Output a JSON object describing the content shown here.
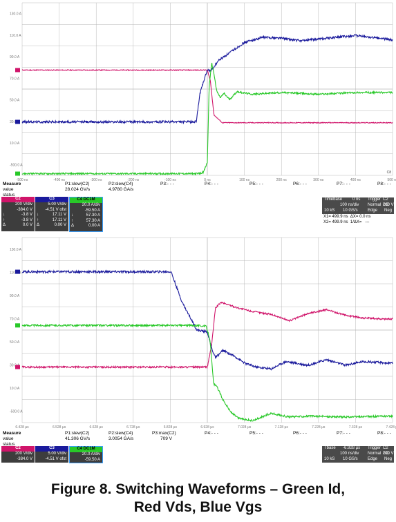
{
  "colors": {
    "grid": "#b8b8b8",
    "vds": "#d0146a",
    "vgs": "#1a1a9c",
    "id": "#28c828",
    "panel": "#3d3d3d"
  },
  "chart_data": [
    {
      "type": "line",
      "xunit": "ns",
      "yunit": "A",
      "xlim": [
        -500,
        500
      ],
      "ylim": [
        -50,
        150
      ],
      "y_tick_labels": [
        "130.0 A",
        "110.0 A",
        "90.0 A",
        "70.0 A",
        "50.0 A",
        "30.0 A",
        "10.0 A",
        "-500.0 A"
      ],
      "x_tick_labels": [
        "-500 ns",
        "-400 ns",
        "-300 ns",
        "-200 ns",
        "-100 ns",
        "0 ns",
        "100 ns",
        "200 ns",
        "300 ns",
        "400 ns",
        "500 ns"
      ],
      "corner_label": "C8",
      "series": [
        {
          "x": [
            -500,
            -50,
            -20,
            0,
            8,
            18,
            40,
            100,
            200,
            300,
            400,
            500
          ],
          "y": [
            72,
            72,
            72,
            72,
            60,
            20,
            11,
            11,
            11,
            11,
            11,
            11
          ],
          "noise": 0.5
        },
        {
          "x": [
            -500,
            -50,
            -30,
            -20,
            0,
            10,
            30,
            60,
            100,
            150,
            200,
            250,
            300,
            350,
            400,
            500
          ],
          "y": [
            12,
            12,
            12,
            45,
            72,
            71,
            83,
            92,
            104,
            110,
            109,
            106,
            108,
            110,
            112,
            107
          ],
          "noise": 1.3
        },
        {
          "x": [
            -500,
            -20,
            -10,
            0,
            5,
            12,
            18,
            25,
            35,
            45,
            60,
            80,
            120,
            200,
            300,
            400,
            500
          ],
          "y": [
            -48,
            -48,
            -46,
            -35,
            55,
            80,
            68,
            48,
            40,
            45,
            38,
            47,
            44,
            46,
            44,
            46,
            46
          ],
          "noise": 1.0
        }
      ]
    },
    {
      "type": "line",
      "xunit": "µs",
      "yunit": "A",
      "xlim": [
        6.428,
        7.428
      ],
      "ylim": [
        -50,
        150
      ],
      "y_tick_labels": [
        "130.0 A",
        "110.0 A",
        "90.0 A",
        "70.0 A",
        "50.0 A",
        "30.0 A",
        "10.0 A",
        "-500.0 A",
        "-500.0 A"
      ],
      "x_tick_labels": [
        "6.428 µs",
        "6.528 µs",
        "6.628 µs",
        "6.728 µs",
        "6.828 µs",
        "6.928 µs",
        "7.028 µs",
        "7.128 µs",
        "7.228 µs",
        "7.328 µs",
        "7.428 µs"
      ],
      "series": [
        {
          "x": [
            6.428,
            6.9,
            6.928,
            6.94,
            6.95,
            6.965,
            6.98,
            7.01,
            7.05,
            7.1,
            7.15,
            7.2,
            7.25,
            7.3,
            7.35,
            7.4,
            7.428
          ],
          "y": [
            10,
            10,
            10,
            35,
            74,
            80,
            78,
            74,
            70,
            67,
            60,
            68,
            72,
            66,
            63,
            62,
            62
          ],
          "noise": 0.9
        },
        {
          "x": [
            6.428,
            6.83,
            6.86,
            6.9,
            6.928,
            6.94,
            6.95,
            6.97,
            7.0,
            7.03,
            7.06,
            7.1,
            7.14,
            7.2,
            7.25,
            7.3,
            7.35,
            7.428
          ],
          "y": [
            113,
            113,
            80,
            50,
            48,
            30,
            20,
            28,
            22,
            14,
            10,
            8,
            16,
            12,
            18,
            12,
            16,
            14
          ],
          "noise": 1.2
        },
        {
          "x": [
            6.428,
            6.9,
            6.925,
            6.935,
            6.945,
            6.955,
            6.97,
            6.99,
            7.01,
            7.05,
            7.1,
            7.15,
            7.2,
            7.3,
            7.428
          ],
          "y": [
            55,
            55,
            54,
            40,
            -8,
            -12,
            -25,
            -38,
            -45,
            -48,
            -40,
            -44,
            -43,
            -44,
            -43
          ],
          "noise": 1.0
        }
      ]
    }
  ],
  "scope1": {
    "measure": {
      "headers": [
        "Measure",
        "value",
        "status"
      ],
      "params": [
        {
          "label": "P1:slew(C2)",
          "value": "28.024 GV/s"
        },
        {
          "label": "P2:slew(C4)",
          "value": "4.9780 GA/s"
        },
        {
          "label": "P3:- - -",
          "value": ""
        },
        {
          "label": "P4:- - -",
          "value": ""
        },
        {
          "label": "P5:- - -",
          "value": ""
        },
        {
          "label": "P6:- - -",
          "value": ""
        },
        {
          "label": "P7:- - -",
          "value": ""
        },
        {
          "label": "P8:- - -",
          "value": ""
        }
      ]
    },
    "channels": [
      {
        "name": "C2",
        "scale": "200 V/div",
        "offset": "-384.0 V",
        "rows": [
          [
            "↓",
            "-3.8 V"
          ],
          [
            "↑",
            "-3.8 V"
          ],
          [
            "Δ",
            "0.0 V"
          ]
        ]
      },
      {
        "name": "C3",
        "scale": "5.00 V/div",
        "offset": "-4.51 V ofst",
        "rows": [
          [
            "↓",
            "17.11 V"
          ],
          [
            "↑",
            "17.11 V"
          ],
          [
            "Δ",
            "0.00 V"
          ]
        ]
      },
      {
        "name": "C4 DC1M",
        "scale": "20.0 A/div",
        "offset": "-59.50 A",
        "rows": [
          [
            "↓",
            "57.30 A"
          ],
          [
            "↑",
            "57.30 A"
          ],
          [
            "Δ",
            "0.00 A"
          ]
        ]
      }
    ],
    "timebase": {
      "r1": [
        "Timebase",
        "0 ns",
        "Trigger",
        "C2 DC"
      ],
      "r2": [
        "100 ns/div",
        "Normal",
        "200 V"
      ],
      "r3": [
        "10 kS",
        "10 GS/s",
        "Edge",
        "Neg"
      ]
    },
    "cursor": {
      "x1": "X1=",
      "x1v": "499.9 ns",
      "dx": "ΔX=",
      "dxv": "0.0 ns",
      "x2": "X2=",
      "x2v": "499.9 ns",
      "idx": "1/ΔX=",
      "idxv": "---"
    }
  },
  "scope2": {
    "measure": {
      "headers": [
        "Measure",
        "value",
        "status"
      ],
      "params": [
        {
          "label": "P1:slew(C2)",
          "value": "41.306 GV/s"
        },
        {
          "label": "P2:slew(C4)",
          "value": "3.0054 GA/s"
        },
        {
          "label": "P3:max(C2)",
          "value": "709 V"
        },
        {
          "label": "P4:- - -",
          "value": ""
        },
        {
          "label": "P5:- - -",
          "value": ""
        },
        {
          "label": "P6:- - -",
          "value": ""
        },
        {
          "label": "P7:- - -",
          "value": ""
        },
        {
          "label": "P8:- - -",
          "value": ""
        }
      ]
    },
    "channels": [
      {
        "name": "C2",
        "scale": "200 V/div",
        "offset": "-384.0 V"
      },
      {
        "name": "C3",
        "scale": "5.00 V/div",
        "offset": "-4.51 V ofst"
      },
      {
        "name": "C4 DC1M",
        "scale": "20.0 A/div",
        "offset": "-59.50 A"
      }
    ],
    "timebase": {
      "r1": [
        "Tbase",
        "-6.928 µs",
        "Trigger",
        "C2 DC"
      ],
      "r2": [
        "100 ns/div",
        "Normal",
        "200 V"
      ],
      "r3": [
        "10 kS",
        "10 GS/s",
        "Edge",
        "Neg"
      ]
    }
  },
  "caption": {
    "line1": "Figure 8. Switching Waveforms – Green Id,",
    "line2": "Red Vds, Blue Vgs"
  }
}
